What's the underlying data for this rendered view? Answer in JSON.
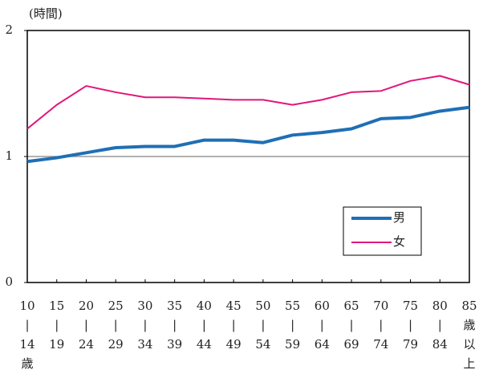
{
  "chart_data": {
    "type": "line",
    "y_label": "(時間)",
    "categories": [
      [
        "10",
        "|",
        "14",
        "歳"
      ],
      [
        "15",
        "|",
        "19"
      ],
      [
        "20",
        "|",
        "24"
      ],
      [
        "25",
        "|",
        "29"
      ],
      [
        "30",
        "|",
        "34"
      ],
      [
        "35",
        "|",
        "39"
      ],
      [
        "40",
        "|",
        "44"
      ],
      [
        "45",
        "|",
        "49"
      ],
      [
        "50",
        "|",
        "54"
      ],
      [
        "55",
        "|",
        "59"
      ],
      [
        "60",
        "|",
        "64"
      ],
      [
        "65",
        "|",
        "69"
      ],
      [
        "70",
        "|",
        "74"
      ],
      [
        "75",
        "|",
        "79"
      ],
      [
        "80",
        "|",
        "84"
      ],
      [
        "85",
        "歳",
        "以",
        "上"
      ]
    ],
    "series": [
      {
        "name": "男",
        "color": "#1f6fb5",
        "values": [
          0.96,
          0.99,
          1.03,
          1.07,
          1.08,
          1.08,
          1.13,
          1.13,
          1.11,
          1.17,
          1.19,
          1.22,
          1.3,
          1.31,
          1.36,
          1.39
        ]
      },
      {
        "name": "女",
        "color": "#e0177a",
        "values": [
          1.22,
          1.41,
          1.56,
          1.51,
          1.47,
          1.47,
          1.46,
          1.45,
          1.45,
          1.41,
          1.45,
          1.51,
          1.52,
          1.6,
          1.64,
          1.57
        ]
      }
    ],
    "ylim": [
      0,
      2
    ],
    "yticks": [
      0,
      1,
      2
    ],
    "grid": true,
    "legend": "lower right"
  }
}
